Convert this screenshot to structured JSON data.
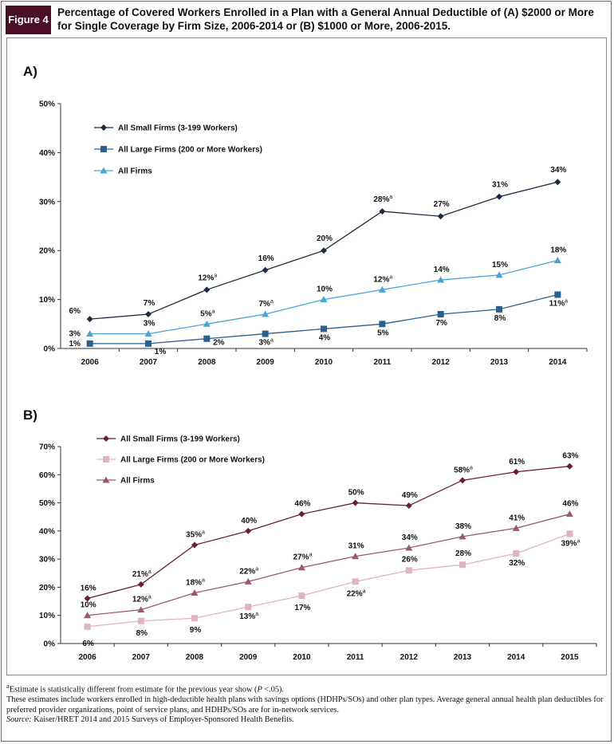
{
  "figure": {
    "badge": "Figure 4",
    "title": "Percentage of Covered Workers Enrolled in a Plan with a General Annual Deductible of (A) $2000 or More for Single Coverage by Firm Size, 2006-2014 or (B) $1000 or More, 2006-2015."
  },
  "colors": {
    "badge": "#4a0f27",
    "a_small": "#1f2a44",
    "a_large": "#2a5f8f",
    "a_all": "#4aa3d3",
    "b_small": "#6b1f35",
    "b_large": "#e0b3bd",
    "b_all": "#9b5a6c"
  },
  "chart_data": [
    {
      "type": "line",
      "panel_label": "A)",
      "x": [
        "2006",
        "2007",
        "2008",
        "2009",
        "2010",
        "2011",
        "2012",
        "2013",
        "2014"
      ],
      "ylim": [
        0,
        50
      ],
      "yticks": [
        "0%",
        "10%",
        "20%",
        "30%",
        "40%",
        "50%"
      ],
      "grid": false,
      "legend_position": "top-left",
      "series": [
        {
          "name": "All Small Firms (3-199 Workers)",
          "marker": "diamond",
          "values": [
            6,
            7,
            12,
            16,
            20,
            28,
            27,
            31,
            34
          ],
          "labels": [
            "6%",
            "7%",
            "12%",
            "16%",
            "20%",
            "28%",
            "27%",
            "31%",
            "34%"
          ],
          "significant": [
            false,
            false,
            true,
            false,
            false,
            true,
            false,
            false,
            false
          ]
        },
        {
          "name": "All Large Firms (200 or More Workers)",
          "marker": "square",
          "values": [
            1,
            1,
            2,
            3,
            4,
            5,
            7,
            8,
            11
          ],
          "labels": [
            "1%",
            "1%",
            "2%",
            "3%",
            "4%",
            "5%",
            "7%",
            "8%",
            "11%"
          ],
          "significant": [
            false,
            false,
            false,
            true,
            false,
            false,
            false,
            false,
            true
          ]
        },
        {
          "name": "All Firms",
          "marker": "triangle",
          "values": [
            3,
            3,
            5,
            7,
            10,
            12,
            14,
            15,
            18
          ],
          "labels": [
            "3%",
            "3%",
            "5%",
            "7%",
            "10%",
            "12%",
            "14%",
            "15%",
            "18%"
          ],
          "significant": [
            false,
            false,
            true,
            true,
            false,
            true,
            false,
            false,
            false
          ]
        }
      ]
    },
    {
      "type": "line",
      "panel_label": "B)",
      "x": [
        "2006",
        "2007",
        "2008",
        "2009",
        "2010",
        "2011",
        "2012",
        "2013",
        "2014",
        "2015"
      ],
      "ylim": [
        0,
        70
      ],
      "yticks": [
        "0%",
        "10%",
        "20%",
        "30%",
        "40%",
        "50%",
        "60%",
        "70%"
      ],
      "grid": false,
      "legend_position": "top-left",
      "series": [
        {
          "name": "All Small Firms (3-199 Workers)",
          "marker": "diamond",
          "values": [
            16,
            21,
            35,
            40,
            46,
            50,
            49,
            58,
            61,
            63
          ],
          "labels": [
            "16%",
            "21%",
            "35%",
            "40%",
            "46%",
            "50%",
            "49%",
            "58%",
            "61%",
            "63%"
          ],
          "significant": [
            false,
            true,
            true,
            false,
            false,
            false,
            false,
            true,
            false,
            false
          ]
        },
        {
          "name": "All Large Firms (200 or More Workers)",
          "marker": "square",
          "values": [
            6,
            8,
            9,
            13,
            17,
            22,
            26,
            28,
            32,
            39
          ],
          "labels": [
            "6%",
            "8%",
            "9%",
            "13%",
            "17%",
            "22%",
            "26%",
            "28%",
            "32%",
            "39%"
          ],
          "significant": [
            false,
            false,
            false,
            true,
            false,
            true,
            false,
            false,
            false,
            true
          ]
        },
        {
          "name": "All Firms",
          "marker": "triangle",
          "values": [
            10,
            12,
            18,
            22,
            27,
            31,
            34,
            38,
            41,
            46
          ],
          "labels": [
            "10%",
            "12%",
            "18%",
            "22%",
            "27%",
            "31%",
            "34%",
            "38%",
            "41%",
            "46%"
          ],
          "significant": [
            false,
            true,
            true,
            true,
            true,
            false,
            false,
            false,
            false,
            false
          ]
        }
      ]
    }
  ],
  "footnote": {
    "sig_mark": "a",
    "sig_a": "Estimate is statistically different from estimate for the previous year show (",
    "sig_p": "P",
    "sig_b": " <.05).",
    "line2": "These estimates include workers enrolled in high-deductible health plans with savings options (HDHPs/SOs) and other plan types. Average general annual health plan deductibles for preferred provider organizations, point of service plans, and HDHPs/SOs are for in-network services.",
    "source_label": "Source:",
    "source_text": " Kaiser/HRET 2014 and 2015 Surveys of Employer-Sponsored Health Benefits."
  }
}
